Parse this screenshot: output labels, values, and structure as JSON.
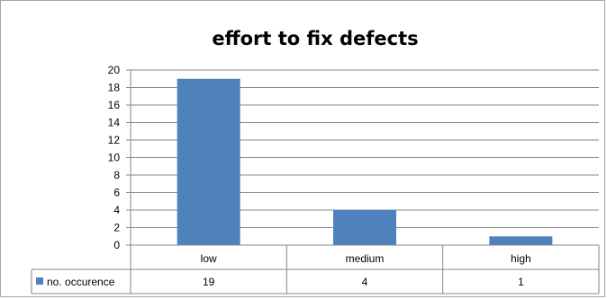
{
  "chart_data": {
    "type": "bar",
    "title": "effort to fix defects",
    "xlabel": "",
    "ylabel": "",
    "categories": [
      "low",
      "medium",
      "high"
    ],
    "series": [
      {
        "name": "no. occurence",
        "values": [
          19,
          4,
          1
        ],
        "color": "#4f81bd"
      }
    ],
    "ylim": [
      0,
      20
    ],
    "yticks": [
      "0",
      "2",
      "4",
      "6",
      "8",
      "10",
      "12",
      "14",
      "16",
      "18",
      "20"
    ],
    "grid": true,
    "legend": "data-table-left",
    "data_table": true,
    "colors": {
      "bar": "#4f81bd",
      "gridline": "#868686",
      "axis": "#868686"
    }
  }
}
